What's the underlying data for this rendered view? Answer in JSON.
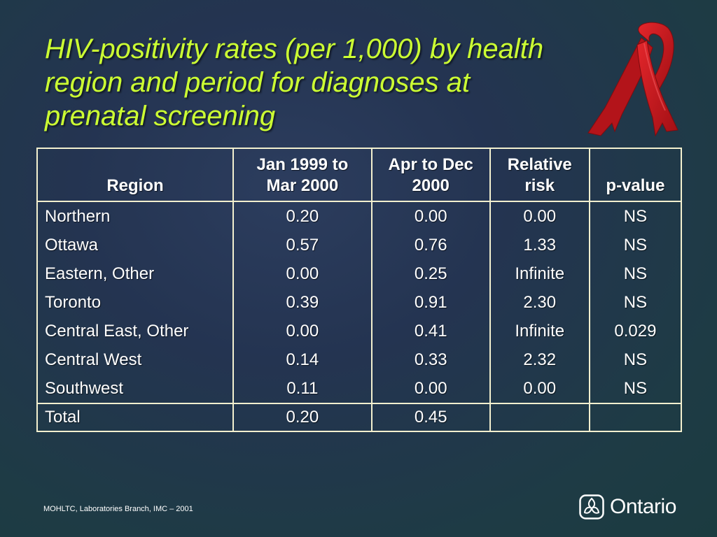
{
  "slide": {
    "title": "HIV-positivity rates (per 1,000) by health region and period for diagnoses at prenatal screening",
    "ribbon_icon": "red-ribbon-icon",
    "colors": {
      "title": "#ccff33",
      "ribbon": "#c8181b",
      "table_border": "#f3f0cf"
    }
  },
  "table": {
    "headers": {
      "region": "Region",
      "period1": [
        "Jan 1999 to",
        "Mar 2000"
      ],
      "period2": [
        "Apr to Dec",
        "2000"
      ],
      "relative_risk": [
        "Relative",
        "risk"
      ],
      "p_value": "p-value"
    },
    "rows": [
      {
        "region": "Northern",
        "period1": "0.20",
        "period2": "0.00",
        "relative_risk": "0.00",
        "p_value": "NS"
      },
      {
        "region": "Ottawa",
        "period1": "0.57",
        "period2": "0.76",
        "relative_risk": "1.33",
        "p_value": "NS"
      },
      {
        "region": "Eastern, Other",
        "period1": "0.00",
        "period2": "0.25",
        "relative_risk": "Infinite",
        "p_value": "NS"
      },
      {
        "region": "Toronto",
        "period1": "0.39",
        "period2": "0.91",
        "relative_risk": "2.30",
        "p_value": "NS"
      },
      {
        "region": "Central East, Other",
        "period1": "0.00",
        "period2": "0.41",
        "relative_risk": "Infinite",
        "p_value": "0.029"
      },
      {
        "region": "Central West",
        "period1": "0.14",
        "period2": "0.33",
        "relative_risk": "2.32",
        "p_value": "NS"
      },
      {
        "region": "Southwest",
        "period1": "0.11",
        "period2": "0.00",
        "relative_risk": "0.00",
        "p_value": "NS"
      }
    ],
    "total": {
      "region": "Total",
      "period1": "0.20",
      "period2": "0.45",
      "relative_risk": "",
      "p_value": ""
    }
  },
  "footer": {
    "source": "MOHLTC, Laboratories Branch, IMC – 2001"
  },
  "logo": {
    "icon": "ontario-trillium-icon",
    "word": "Ontario"
  }
}
